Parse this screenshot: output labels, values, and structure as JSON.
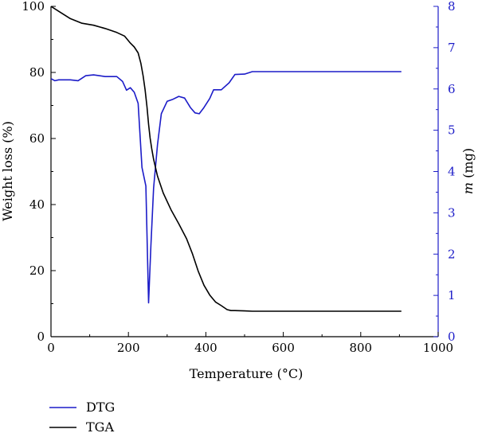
{
  "colors": {
    "tga": "#000000",
    "dtg": "#1c1cc8",
    "axis": "#000000"
  },
  "chart_data": {
    "type": "line",
    "xlabel": "Temperature (°C)",
    "ylabel_left": "Weight loss (%)",
    "ylabel_right_italic": "m",
    "ylabel_right_unit": " (mg)",
    "xlim": [
      0,
      1000
    ],
    "ylim_left": [
      0,
      100
    ],
    "ylim_right": [
      0,
      8
    ],
    "x_ticks": [
      "0",
      "200",
      "400",
      "600",
      "800",
      "1000"
    ],
    "y_left_ticks": [
      "0",
      "20",
      "40",
      "60",
      "80",
      "100"
    ],
    "y_right_ticks": [
      "0",
      "1",
      "2",
      "3",
      "4",
      "5",
      "6",
      "7",
      "8"
    ],
    "grid": false,
    "legend_position": "below",
    "series": [
      {
        "name": "DTG",
        "axis": "right",
        "x": [
          0,
          10,
          20,
          50,
          70,
          90,
          110,
          140,
          170,
          185,
          195,
          205,
          215,
          225,
          235,
          245,
          252,
          258,
          265,
          275,
          285,
          300,
          315,
          330,
          345,
          360,
          372,
          383,
          395,
          410,
          420,
          440,
          460,
          475,
          500,
          520,
          600,
          700,
          800,
          905
        ],
        "y": [
          6.25,
          6.2,
          6.22,
          6.22,
          6.2,
          6.32,
          6.34,
          6.3,
          6.3,
          6.18,
          5.97,
          6.03,
          5.92,
          5.65,
          4.1,
          3.65,
          0.82,
          2.2,
          3.6,
          4.65,
          5.4,
          5.7,
          5.75,
          5.82,
          5.78,
          5.55,
          5.42,
          5.4,
          5.55,
          5.77,
          5.98,
          5.98,
          6.15,
          6.35,
          6.36,
          6.42,
          6.42,
          6.42,
          6.42,
          6.42
        ]
      },
      {
        "name": "TGA",
        "axis": "left",
        "x": [
          0,
          20,
          50,
          80,
          110,
          140,
          170,
          190,
          205,
          215,
          225,
          232,
          238,
          243,
          248,
          252,
          256,
          260,
          265,
          275,
          290,
          310,
          330,
          350,
          365,
          380,
          395,
          410,
          425,
          440,
          455,
          465,
          475,
          500,
          520,
          600,
          700,
          800,
          905
        ],
        "y": [
          100,
          98.5,
          96.3,
          94.9,
          94.3,
          93.3,
          92.1,
          91.0,
          88.9,
          87.7,
          85.9,
          82.8,
          78.9,
          74.8,
          69.6,
          64.3,
          60.2,
          57.0,
          53.7,
          48.6,
          43.5,
          38.4,
          34.2,
          29.7,
          25.2,
          19.9,
          15.6,
          12.6,
          10.5,
          9.4,
          8.2,
          7.9,
          7.9,
          7.8,
          7.7,
          7.7,
          7.7,
          7.7,
          7.7
        ]
      }
    ]
  }
}
